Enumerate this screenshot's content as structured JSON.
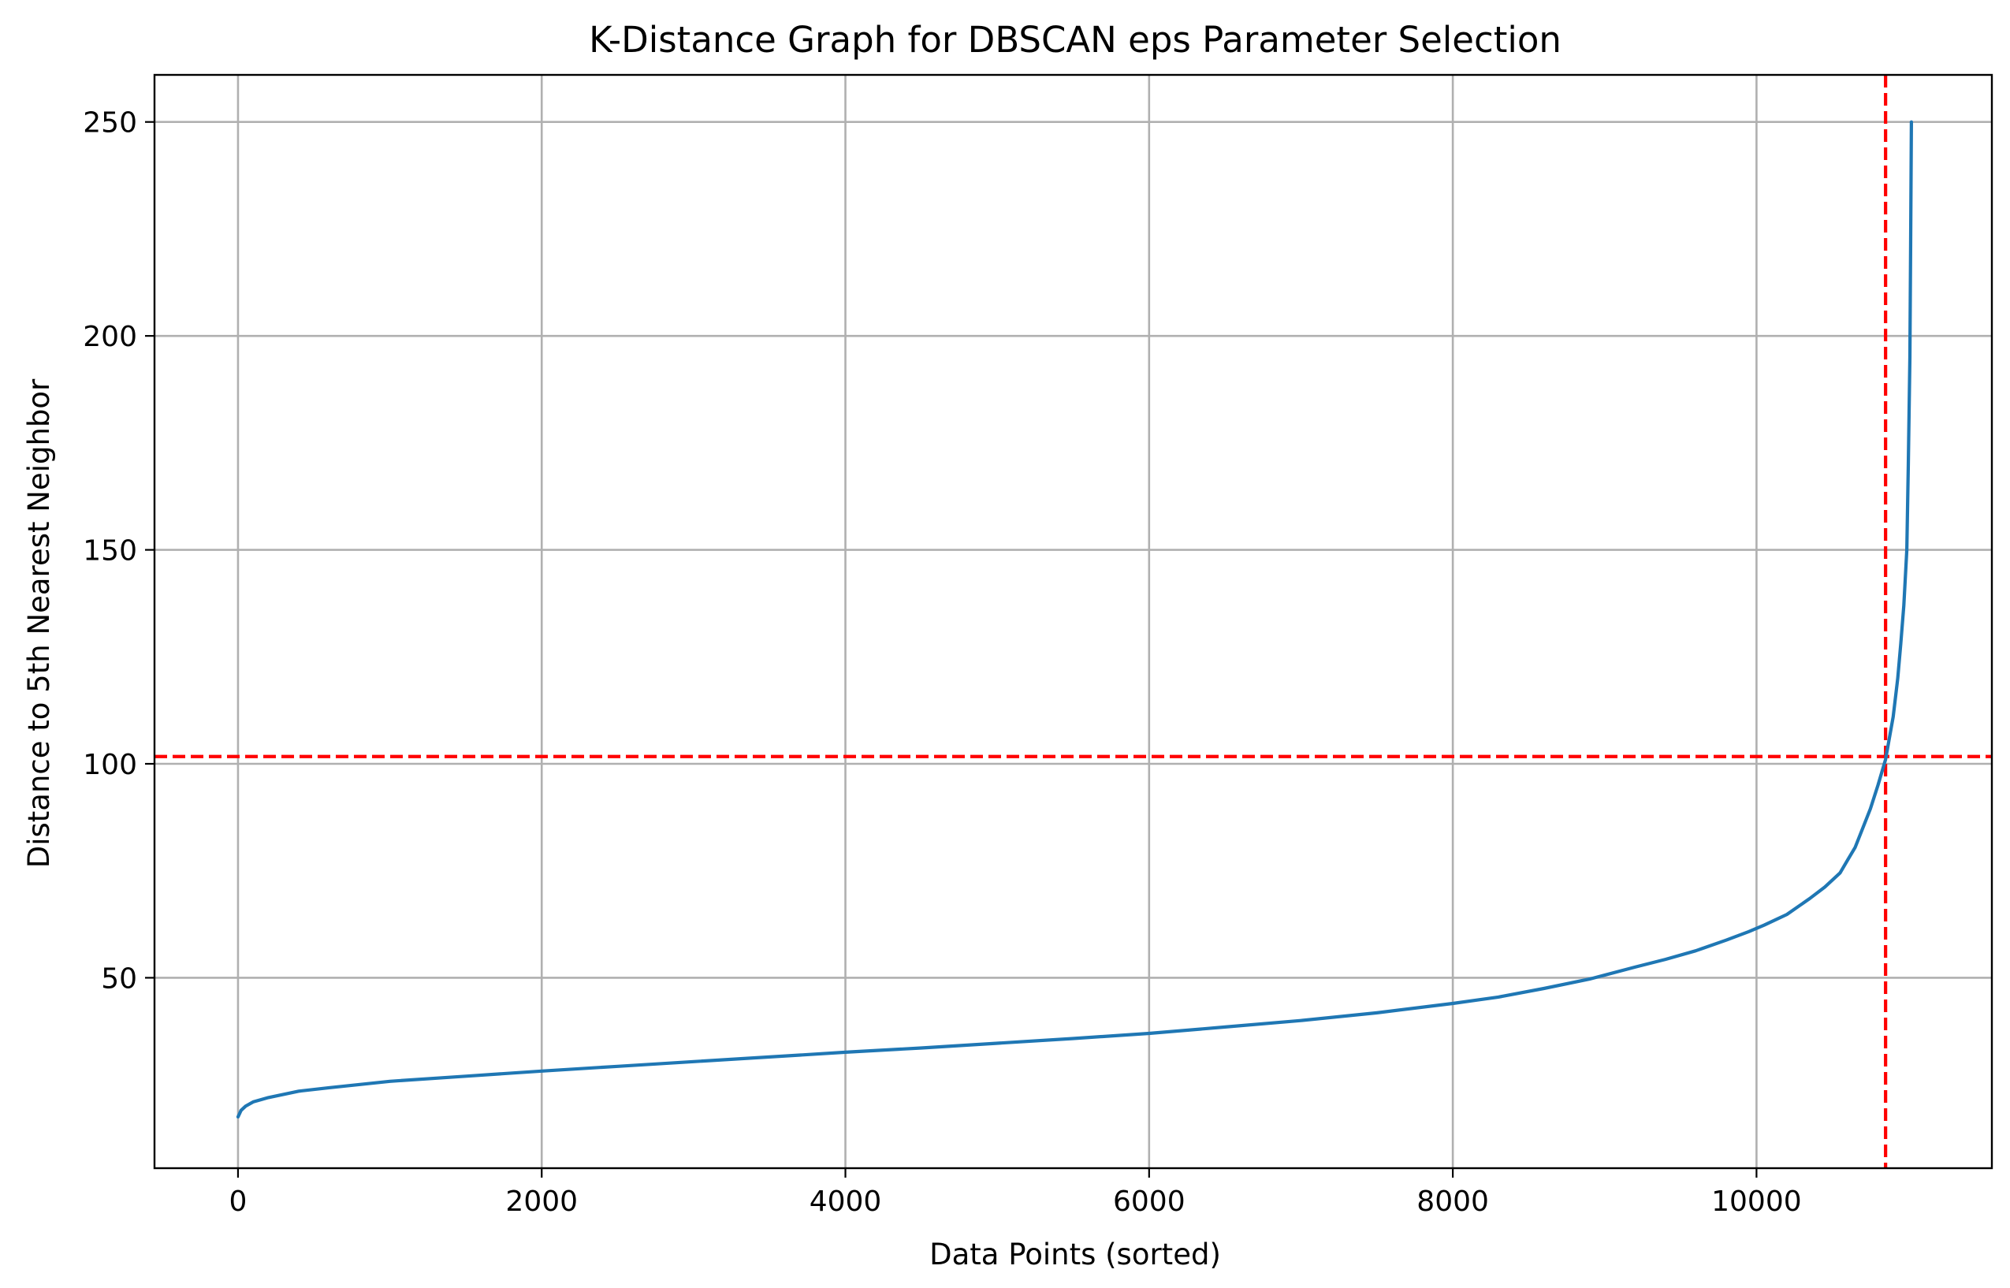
{
  "chart_data": {
    "type": "line",
    "title": "K-Distance Graph for DBSCAN eps Parameter Selection",
    "xlabel": "Data Points (sorted)",
    "ylabel": "Distance to 5th Nearest Neighbor",
    "xlim": [
      -550,
      11550
    ],
    "ylim": [
      5.5,
      261
    ],
    "xticks": [
      0,
      2000,
      4000,
      6000,
      8000,
      10000
    ],
    "xtick_labels": [
      "0",
      "2000",
      "4000",
      "6000",
      "8000",
      "10000"
    ],
    "yticks": [
      50,
      100,
      150,
      200,
      250
    ],
    "ytick_labels": [
      "50",
      "100",
      "150",
      "200",
      "250"
    ],
    "grid": true,
    "series": [
      {
        "color": "#1f77b4",
        "x": [
          0,
          20,
          50,
          100,
          200,
          400,
          600,
          1000,
          1500,
          2000,
          2500,
          3000,
          3500,
          4000,
          4500,
          5000,
          5500,
          6000,
          6500,
          7000,
          7500,
          8000,
          8300,
          8600,
          8900,
          9200,
          9400,
          9600,
          9800,
          9950,
          10050,
          10200,
          10350,
          10450,
          10550,
          10600,
          10650,
          10700,
          10750,
          10800,
          10850,
          10900,
          10930,
          10950,
          10970,
          10990,
          11000,
          11010,
          11015,
          11020
        ],
        "y": [
          17.5,
          19,
          20,
          21,
          22,
          23.5,
          24.3,
          25.8,
          27,
          28.2,
          29.3,
          30.4,
          31.5,
          32.6,
          33.6,
          34.7,
          35.8,
          37,
          38.5,
          40,
          41.8,
          44,
          45.5,
          47.5,
          49.7,
          52.5,
          54.3,
          56.3,
          58.8,
          60.8,
          62.3,
          64.8,
          68.5,
          71.2,
          74.5,
          77.5,
          80.5,
          85,
          89.5,
          95,
          101,
          111,
          120,
          128,
          137,
          150,
          170,
          195,
          220,
          250
        ]
      }
    ],
    "reference_lines": [
      {
        "orientation": "horizontal",
        "value": 101.7,
        "color": "#ff0000",
        "style": "dashed"
      },
      {
        "orientation": "vertical",
        "value": 10850,
        "color": "#ff0000",
        "style": "dashed"
      }
    ]
  }
}
